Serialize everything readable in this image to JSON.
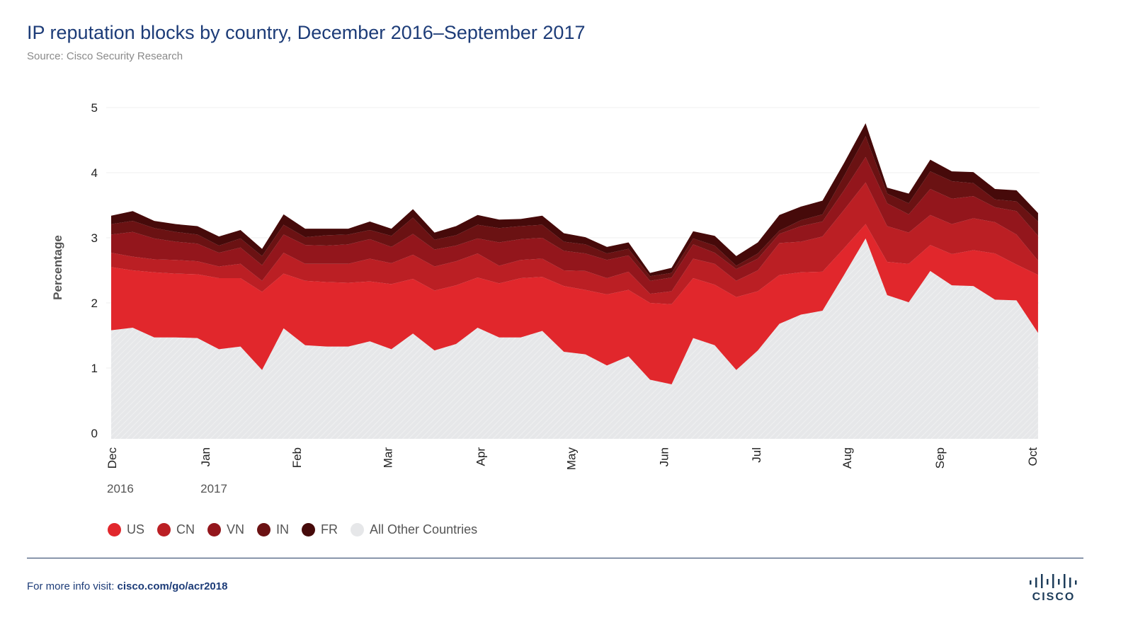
{
  "header": {
    "title": "IP reputation blocks by country, December 2016–September 2017",
    "source": "Source: Cisco Security Research"
  },
  "footer": {
    "prefix": "For more info visit: ",
    "link": "cisco.com/go/acr2018",
    "logo_text": "CISCO"
  },
  "chart_data": {
    "type": "area",
    "stacked": true,
    "title": "IP reputation blocks by country, December 2016–September 2017",
    "xlabel": "",
    "ylabel": "Percentage",
    "ylim": [
      0,
      5
    ],
    "yticks": [
      0,
      1,
      2,
      3,
      4,
      5
    ],
    "grid": true,
    "legend_position": "bottom-left",
    "x_unit": "weeks since Dec 1 2016",
    "x": [
      0,
      1,
      2,
      3,
      4,
      5,
      6,
      7,
      8,
      9,
      10,
      11,
      12,
      13,
      14,
      15,
      16,
      17,
      18,
      19,
      20,
      21,
      22,
      23,
      24,
      25,
      26,
      27,
      28,
      29,
      30,
      31,
      32,
      33,
      34,
      35,
      36,
      37,
      38,
      39,
      40,
      41,
      42,
      43
    ],
    "month_ticks": [
      {
        "label": "Dec",
        "x": 0
      },
      {
        "label": "Jan",
        "x": 4.34
      },
      {
        "label": "Feb",
        "x": 8.57
      },
      {
        "label": "Mar",
        "x": 12.8
      },
      {
        "label": "Apr",
        "x": 17.1
      },
      {
        "label": "May",
        "x": 21.3
      },
      {
        "label": "Jun",
        "x": 25.6
      },
      {
        "label": "Jul",
        "x": 29.9
      },
      {
        "label": "Aug",
        "x": 34.1
      },
      {
        "label": "Sep",
        "x": 38.4
      },
      {
        "label": "Oct",
        "x": 42.7
      }
    ],
    "year_labels": [
      {
        "label": "2016",
        "x": 0
      },
      {
        "label": "2017",
        "x": 4.34
      }
    ],
    "series": [
      {
        "name": "All Other Countries",
        "color": "#e6e7e9",
        "values": [
          1.58,
          1.62,
          1.47,
          1.47,
          1.46,
          1.29,
          1.33,
          0.97,
          1.61,
          1.35,
          1.33,
          1.33,
          1.41,
          1.29,
          1.53,
          1.27,
          1.37,
          1.62,
          1.47,
          1.47,
          1.57,
          1.25,
          1.21,
          1.04,
          1.18,
          0.82,
          0.75,
          1.46,
          1.35,
          0.97,
          1.27,
          1.68,
          1.82,
          1.88,
          2.43,
          2.99,
          2.12,
          2.01,
          2.49,
          2.27,
          2.26,
          2.05,
          2.04,
          1.54
        ]
      },
      {
        "name": "US",
        "color": "#e1272c",
        "values": [
          0.97,
          0.88,
          1.0,
          0.98,
          0.98,
          1.09,
          1.05,
          1.2,
          0.84,
          0.99,
          0.99,
          0.98,
          0.92,
          1.0,
          0.84,
          0.92,
          0.9,
          0.77,
          0.83,
          0.91,
          0.83,
          1.01,
          0.99,
          1.09,
          1.02,
          1.18,
          1.23,
          0.92,
          0.93,
          1.12,
          0.91,
          0.75,
          0.65,
          0.6,
          0.41,
          0.22,
          0.51,
          0.59,
          0.4,
          0.48,
          0.55,
          0.71,
          0.55,
          0.89
        ]
      },
      {
        "name": "CN",
        "color": "#bb1f24",
        "values": [
          0.22,
          0.21,
          0.2,
          0.21,
          0.2,
          0.18,
          0.22,
          0.17,
          0.32,
          0.26,
          0.28,
          0.29,
          0.35,
          0.32,
          0.37,
          0.37,
          0.37,
          0.37,
          0.27,
          0.28,
          0.28,
          0.24,
          0.29,
          0.25,
          0.28,
          0.14,
          0.2,
          0.3,
          0.32,
          0.25,
          0.32,
          0.49,
          0.47,
          0.54,
          0.59,
          0.64,
          0.55,
          0.48,
          0.46,
          0.46,
          0.49,
          0.48,
          0.46,
          0.22
        ]
      },
      {
        "name": "VN",
        "color": "#93161c",
        "values": [
          0.28,
          0.38,
          0.32,
          0.28,
          0.27,
          0.21,
          0.25,
          0.24,
          0.28,
          0.29,
          0.28,
          0.3,
          0.3,
          0.25,
          0.32,
          0.26,
          0.24,
          0.23,
          0.36,
          0.32,
          0.32,
          0.3,
          0.27,
          0.28,
          0.25,
          0.2,
          0.21,
          0.22,
          0.17,
          0.18,
          0.18,
          0.14,
          0.24,
          0.23,
          0.3,
          0.39,
          0.35,
          0.28,
          0.4,
          0.39,
          0.34,
          0.23,
          0.36,
          0.38
        ]
      },
      {
        "name": "IN",
        "color": "#6b1213",
        "values": [
          0.16,
          0.17,
          0.16,
          0.15,
          0.14,
          0.11,
          0.14,
          0.14,
          0.15,
          0.12,
          0.16,
          0.15,
          0.14,
          0.17,
          0.25,
          0.15,
          0.16,
          0.21,
          0.22,
          0.2,
          0.2,
          0.14,
          0.14,
          0.1,
          0.1,
          0.07,
          0.07,
          0.09,
          0.11,
          0.05,
          0.08,
          0.05,
          0.09,
          0.11,
          0.22,
          0.32,
          0.15,
          0.17,
          0.27,
          0.27,
          0.2,
          0.12,
          0.15,
          0.22
        ]
      },
      {
        "name": "FR",
        "color": "#460a0a",
        "values": [
          0.13,
          0.15,
          0.11,
          0.12,
          0.13,
          0.14,
          0.13,
          0.11,
          0.16,
          0.13,
          0.1,
          0.09,
          0.13,
          0.11,
          0.13,
          0.11,
          0.14,
          0.15,
          0.13,
          0.11,
          0.14,
          0.13,
          0.11,
          0.1,
          0.1,
          0.05,
          0.08,
          0.11,
          0.15,
          0.15,
          0.17,
          0.24,
          0.21,
          0.21,
          0.2,
          0.2,
          0.09,
          0.15,
          0.18,
          0.15,
          0.17,
          0.16,
          0.17,
          0.13
        ]
      }
    ],
    "legend": [
      {
        "label": "US",
        "color": "#e1272c"
      },
      {
        "label": "CN",
        "color": "#bb1f24"
      },
      {
        "label": "VN",
        "color": "#93161c"
      },
      {
        "label": "IN",
        "color": "#6b1213"
      },
      {
        "label": "FR",
        "color": "#460a0a"
      },
      {
        "label": "All Other Countries",
        "color": "#e6e7e9"
      }
    ]
  }
}
